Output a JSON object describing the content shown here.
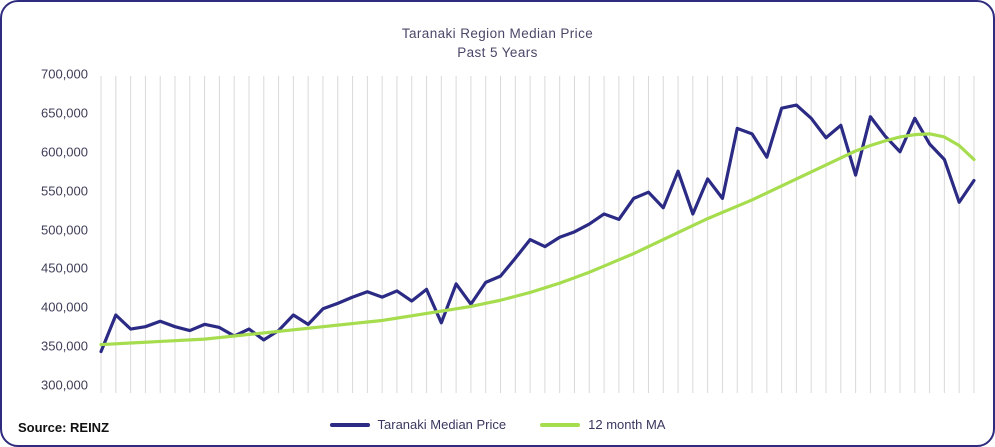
{
  "title": {
    "line1": "Taranaki Region Median Price",
    "line2": "Past 5 Years"
  },
  "source": "Source: REINZ",
  "colors": {
    "border": "#2f2b7e",
    "gridline": "#d9d9d9",
    "median_line": "#2b2a84",
    "ma_line": "#a6dd4f",
    "title_text": "#4b4768",
    "tick_text": "#3f3d58"
  },
  "chart_data": {
    "type": "line",
    "title": "Taranaki Region Median Price",
    "subtitle": "Past 5 Years",
    "x_axis": {
      "labels_visible": false,
      "points": 60,
      "description": "monthly, past 5 years"
    },
    "ylabel": "",
    "ylim": [
      300000,
      700000
    ],
    "yticks": [
      "700,000",
      "650,000",
      "600,000",
      "550,000",
      "500,000",
      "450,000",
      "400,000",
      "350,000",
      "300,000"
    ],
    "grid": "vertical-only",
    "legend_position": "bottom-center",
    "series": [
      {
        "name": "Taranaki Median Price",
        "color": "#2b2a84",
        "values": [
          343000,
          390000,
          372000,
          375000,
          382000,
          375000,
          370000,
          378000,
          374000,
          363000,
          372000,
          358000,
          370000,
          390000,
          378000,
          398000,
          405000,
          413000,
          420000,
          413000,
          421000,
          408000,
          423000,
          380000,
          430000,
          404000,
          432000,
          440000,
          463000,
          487000,
          478000,
          490000,
          497000,
          507000,
          520000,
          513000,
          540000,
          548000,
          528000,
          575000,
          520000,
          565000,
          540000,
          630000,
          623000,
          593000,
          656000,
          660000,
          643000,
          618000,
          634000,
          570000,
          645000,
          620000,
          600000,
          643000,
          610000,
          590000,
          535000,
          563000
        ]
      },
      {
        "name": "12 month MA",
        "color": "#a6dd4f",
        "values": [
          352000,
          353000,
          354000,
          355000,
          356000,
          357000,
          358000,
          359000,
          361000,
          363000,
          365000,
          367000,
          369000,
          371000,
          373000,
          375000,
          377000,
          379000,
          381000,
          383000,
          386000,
          389000,
          392000,
          395000,
          398000,
          401000,
          405000,
          409000,
          414000,
          419000,
          425000,
          431000,
          438000,
          445000,
          453000,
          461000,
          469000,
          478000,
          487000,
          496000,
          505000,
          514000,
          522000,
          530000,
          538000,
          547000,
          556000,
          565000,
          574000,
          583000,
          592000,
          601000,
          608000,
          614000,
          619000,
          622000,
          623000,
          619000,
          608000,
          590000
        ]
      }
    ]
  }
}
